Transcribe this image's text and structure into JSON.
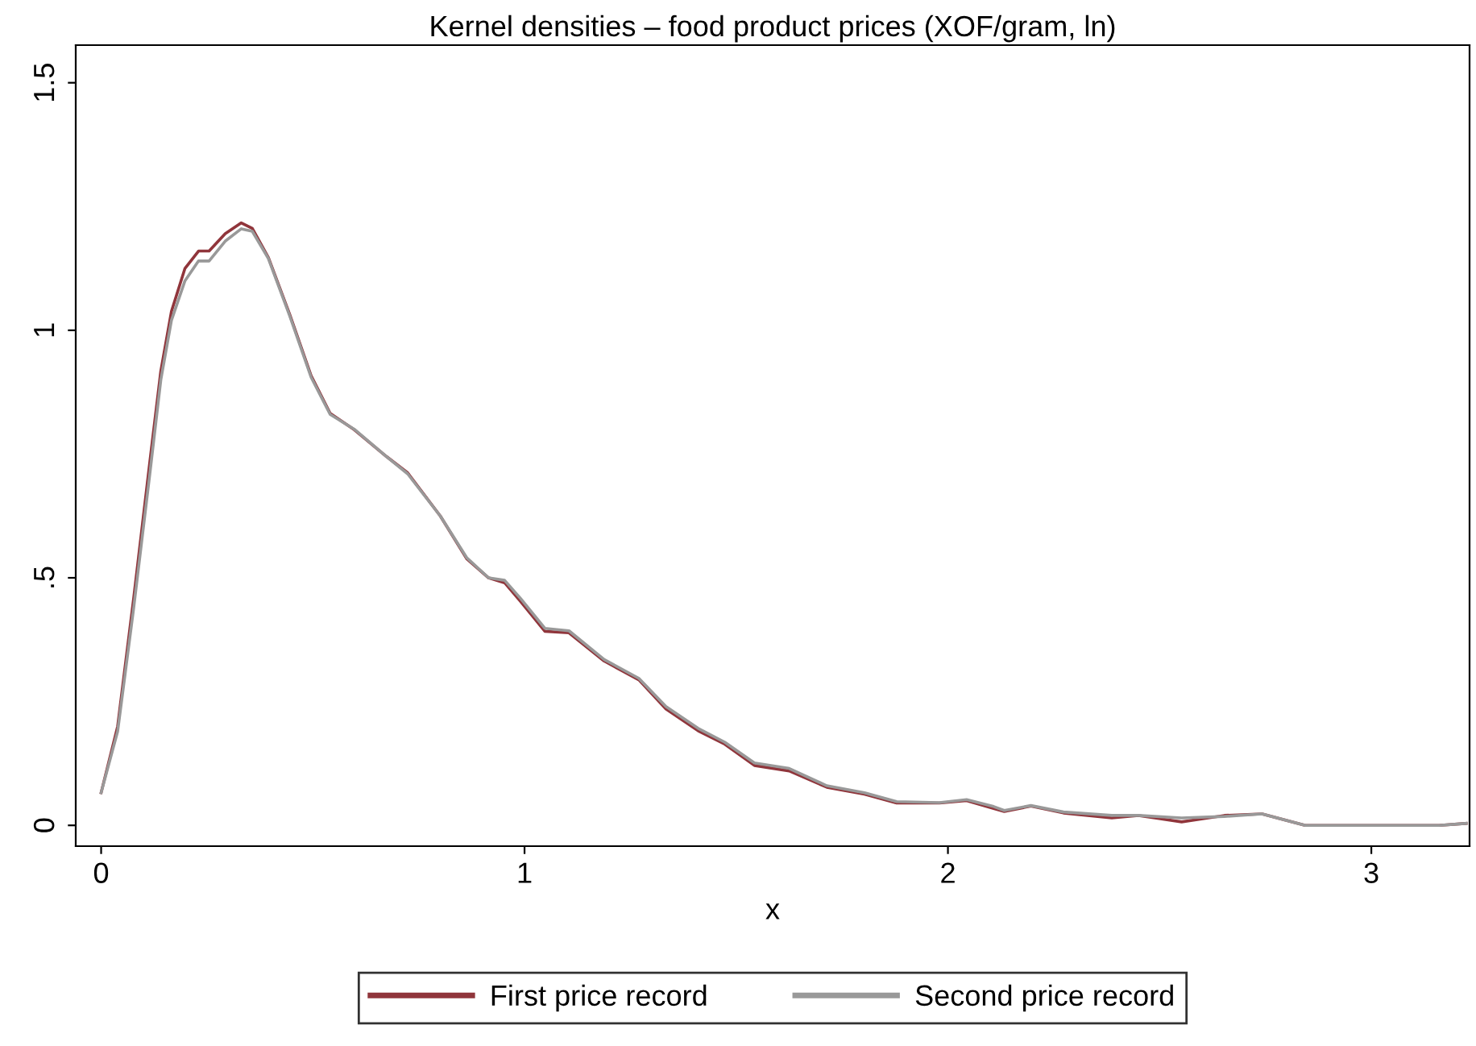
{
  "chart_data": {
    "type": "line",
    "title": "Kernel densities – food product prices (XOF/gram, ln)",
    "xlabel": "x",
    "xlim": [
      -0.06,
      3.232
    ],
    "ylim": [
      -0.042,
      1.576
    ],
    "xticks": [
      0,
      1,
      2,
      3
    ],
    "yticks": [
      {
        "value": 0,
        "label": "0"
      },
      {
        "value": 0.5,
        "label": ".5"
      },
      {
        "value": 1,
        "label": "1"
      },
      {
        "value": 1.5,
        "label": "1.5"
      }
    ],
    "grid": false,
    "legend": "bottom",
    "marker": "none",
    "line_style": "solid",
    "series": [
      {
        "name": "First price record",
        "color": "#90353b",
        "x": [
          0,
          0.039,
          0.077,
          0.115,
          0.141,
          0.166,
          0.198,
          0.23,
          0.255,
          0.293,
          0.331,
          0.357,
          0.395,
          0.445,
          0.496,
          0.541,
          0.598,
          0.674,
          0.724,
          0.801,
          0.864,
          0.915,
          0.953,
          0.991,
          1.048,
          1.105,
          1.188,
          1.27,
          1.334,
          1.41,
          1.473,
          1.543,
          1.625,
          1.714,
          1.803,
          1.879,
          1.98,
          2.044,
          2.108,
          2.133,
          2.196,
          2.273,
          2.387,
          2.45,
          2.552,
          2.653,
          2.742,
          2.844,
          3.16,
          3.224
        ],
        "values": [
          0.066,
          0.2,
          0.46,
          0.734,
          0.918,
          1.038,
          1.125,
          1.16,
          1.16,
          1.195,
          1.217,
          1.206,
          1.147,
          1.033,
          0.908,
          0.832,
          0.799,
          0.745,
          0.712,
          0.625,
          0.538,
          0.5,
          0.49,
          0.452,
          0.392,
          0.389,
          0.332,
          0.294,
          0.235,
          0.191,
          0.164,
          0.121,
          0.11,
          0.077,
          0.063,
          0.045,
          0.045,
          0.05,
          0.034,
          0.028,
          0.039,
          0.025,
          0.015,
          0.02,
          0.007,
          0.02,
          0.023,
          0,
          0,
          0.004
        ]
      },
      {
        "name": "Second price record",
        "color": "#999999",
        "x": [
          0,
          0.039,
          0.077,
          0.115,
          0.141,
          0.166,
          0.198,
          0.23,
          0.255,
          0.293,
          0.331,
          0.357,
          0.395,
          0.445,
          0.496,
          0.541,
          0.598,
          0.674,
          0.724,
          0.801,
          0.864,
          0.915,
          0.953,
          0.991,
          1.048,
          1.105,
          1.188,
          1.27,
          1.334,
          1.41,
          1.473,
          1.543,
          1.625,
          1.714,
          1.803,
          1.879,
          1.98,
          2.044,
          2.108,
          2.133,
          2.196,
          2.273,
          2.387,
          2.45,
          2.552,
          2.653,
          2.742,
          2.844,
          3.16,
          3.224
        ],
        "values": [
          0.066,
          0.19,
          0.44,
          0.71,
          0.9,
          1.02,
          1.1,
          1.14,
          1.14,
          1.18,
          1.205,
          1.2,
          1.145,
          1.03,
          0.905,
          0.83,
          0.8,
          0.745,
          0.71,
          0.625,
          0.54,
          0.5,
          0.495,
          0.458,
          0.398,
          0.393,
          0.335,
          0.297,
          0.24,
          0.196,
          0.168,
          0.126,
          0.115,
          0.08,
          0.066,
          0.048,
          0.046,
          0.052,
          0.038,
          0.03,
          0.04,
          0.027,
          0.02,
          0.02,
          0.015,
          0.018,
          0.023,
          0,
          0,
          0.004
        ]
      }
    ]
  }
}
